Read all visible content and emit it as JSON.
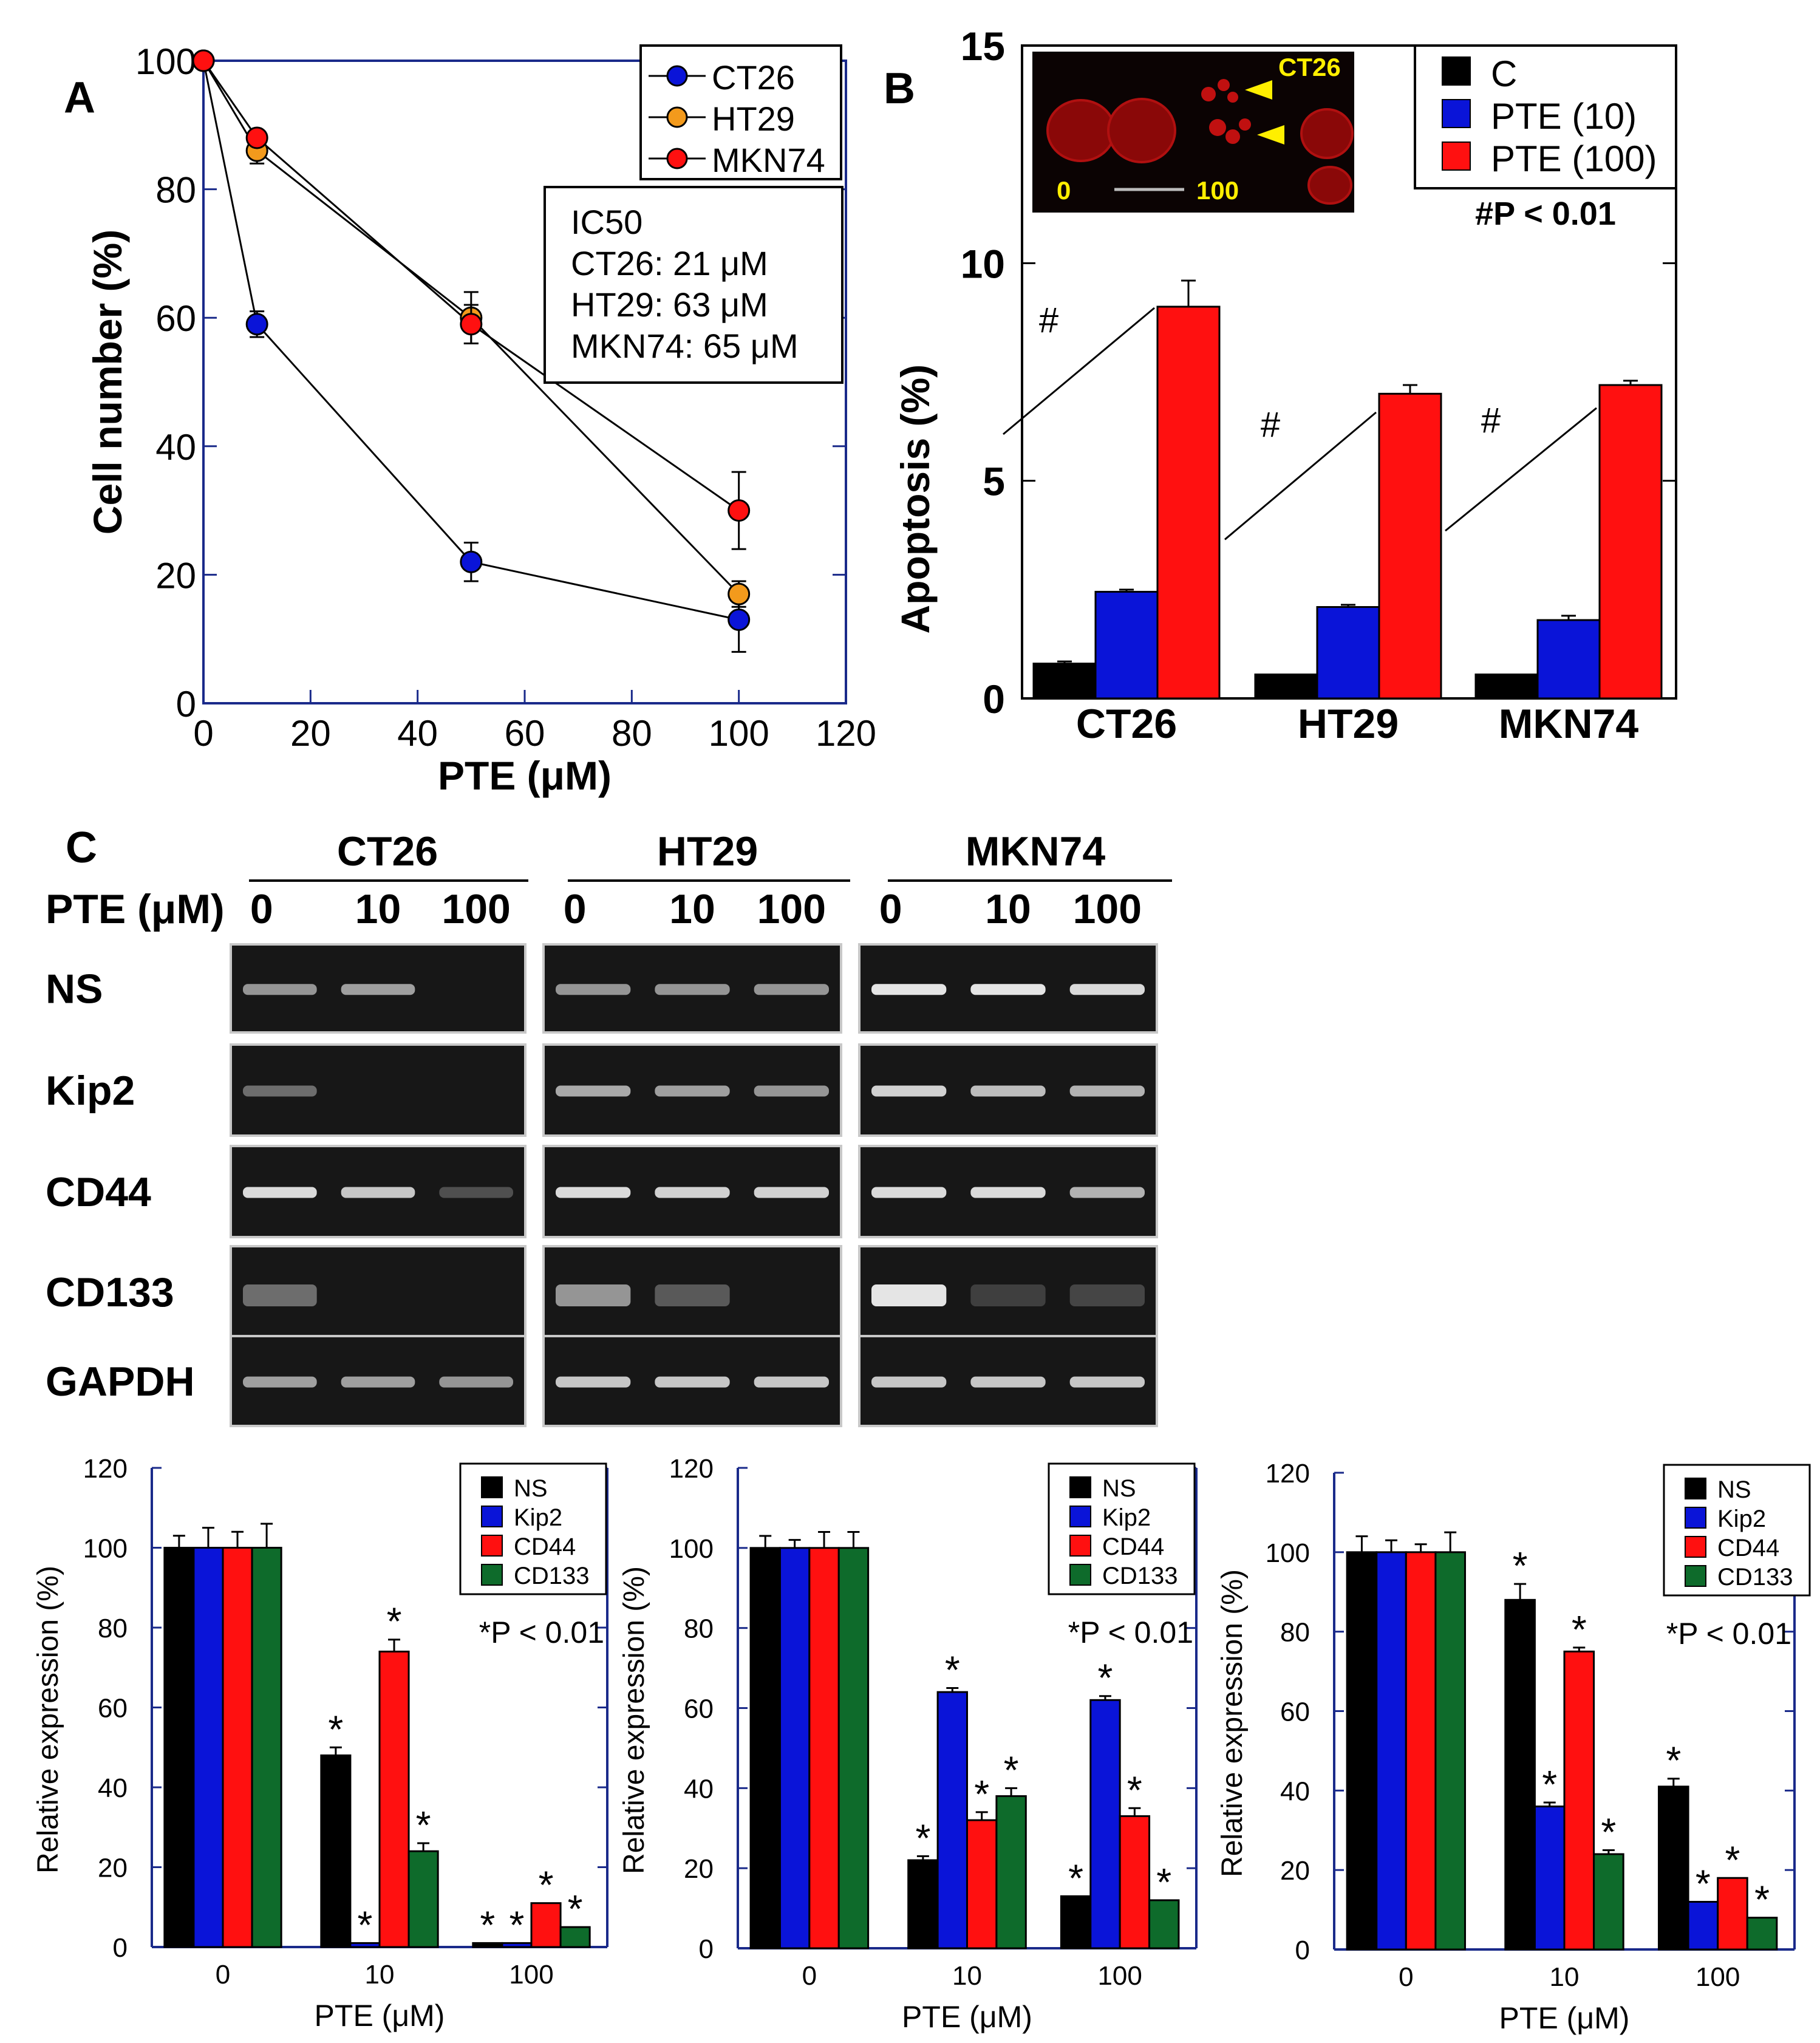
{
  "colors": {
    "black": "#000000",
    "blue": "#0a14d8",
    "orange": "#f39a1c",
    "red": "#ff1010",
    "green": "#0e6b2b",
    "yellow": "#ffef00"
  },
  "chart_data": [
    {
      "panel": "A",
      "type": "line",
      "xlabel": "PTE (μM)",
      "ylabel": "Cell number (%)",
      "xlim": [
        0,
        120
      ],
      "ylim": [
        0,
        100
      ],
      "xticks": [
        0,
        20,
        40,
        60,
        80,
        100,
        120
      ],
      "yticks": [
        0,
        20,
        40,
        60,
        80,
        100
      ],
      "x": [
        0,
        10,
        50,
        100
      ],
      "series": [
        {
          "name": "CT26",
          "color": "blue",
          "values": [
            100,
            59,
            22,
            13
          ],
          "errors": [
            0,
            2,
            3,
            5
          ]
        },
        {
          "name": "HT29",
          "color": "orange",
          "values": [
            100,
            86,
            60,
            17
          ],
          "errors": [
            0,
            2,
            4,
            2
          ]
        },
        {
          "name": "MKN74",
          "color": "red",
          "values": [
            100,
            88,
            59,
            30
          ],
          "errors": [
            0,
            1,
            3,
            6
          ]
        }
      ],
      "ic50_box": [
        "IC50",
        "CT26: 21 μM",
        "HT29: 63 μM",
        "MKN74: 65 μM"
      ]
    },
    {
      "panel": "B",
      "type": "bar",
      "ylabel": "Apoptosis (%)",
      "ylim": [
        0,
        15
      ],
      "yticks": [
        0,
        5,
        10,
        15
      ],
      "categories": [
        "CT26",
        "HT29",
        "MKN74"
      ],
      "series": [
        {
          "name": "C",
          "color": "black",
          "values": [
            0.8,
            0.55,
            0.55
          ],
          "errors": [
            0.05,
            0,
            0
          ]
        },
        {
          "name": "PTE (10)",
          "color": "blue",
          "values": [
            2.45,
            2.1,
            1.8
          ],
          "errors": [
            0.05,
            0.05,
            0.1
          ]
        },
        {
          "name": "PTE (100)",
          "color": "red",
          "values": [
            9.0,
            7.0,
            7.2
          ],
          "errors": [
            0.6,
            0.2,
            0.1
          ]
        }
      ],
      "significance_marks": [
        "#",
        "#",
        "#"
      ],
      "pvalue_note": "#P < 0.01",
      "inset": {
        "label": "CT26",
        "scale_start": "0",
        "scale_end": "100"
      }
    },
    {
      "panel": "C1",
      "type": "bar",
      "ylabel": "Relative expression (%)",
      "xlabel": "PTE (μM)",
      "ylim": [
        0,
        120
      ],
      "yticks": [
        0,
        20,
        40,
        60,
        80,
        100,
        120
      ],
      "categories": [
        "0",
        "10",
        "100"
      ],
      "series": [
        {
          "name": "NS",
          "color": "black",
          "values": [
            100,
            48,
            1
          ],
          "errors": [
            3,
            2,
            0
          ]
        },
        {
          "name": "Kip2",
          "color": "blue",
          "values": [
            100,
            1,
            1
          ],
          "errors": [
            5,
            0,
            0
          ]
        },
        {
          "name": "CD44",
          "color": "red",
          "values": [
            100,
            74,
            11
          ],
          "errors": [
            4,
            3,
            0
          ]
        },
        {
          "name": "CD133",
          "color": "green",
          "values": [
            100,
            24,
            5
          ],
          "errors": [
            6,
            2,
            0
          ]
        }
      ],
      "stars": [
        [
          false,
          false,
          false,
          false
        ],
        [
          true,
          true,
          true,
          true
        ],
        [
          true,
          true,
          true,
          true
        ]
      ],
      "pvalue_note": "*P < 0.01"
    },
    {
      "panel": "C2",
      "type": "bar",
      "ylabel": "Relative expression (%)",
      "xlabel": "PTE (μM)",
      "ylim": [
        0,
        120
      ],
      "yticks": [
        0,
        20,
        40,
        60,
        80,
        100,
        120
      ],
      "categories": [
        "0",
        "10",
        "100"
      ],
      "series": [
        {
          "name": "NS",
          "color": "black",
          "values": [
            100,
            22,
            13
          ],
          "errors": [
            3,
            1,
            0
          ]
        },
        {
          "name": "Kip2",
          "color": "blue",
          "values": [
            100,
            64,
            62
          ],
          "errors": [
            2,
            1,
            1
          ]
        },
        {
          "name": "CD44",
          "color": "red",
          "values": [
            100,
            32,
            33
          ],
          "errors": [
            4,
            2,
            2
          ]
        },
        {
          "name": "CD133",
          "color": "green",
          "values": [
            100,
            38,
            12
          ],
          "errors": [
            4,
            2,
            0
          ]
        }
      ],
      "stars": [
        [
          false,
          false,
          false,
          false
        ],
        [
          true,
          true,
          true,
          true
        ],
        [
          true,
          true,
          true,
          true
        ]
      ],
      "pvalue_note": "*P < 0.01"
    },
    {
      "panel": "C3",
      "type": "bar",
      "ylabel": "Relative expression (%)",
      "xlabel": "PTE (μM)",
      "ylim": [
        0,
        120
      ],
      "yticks": [
        0,
        20,
        40,
        60,
        80,
        100,
        120
      ],
      "categories": [
        "0",
        "10",
        "100"
      ],
      "series": [
        {
          "name": "NS",
          "color": "black",
          "values": [
            100,
            88,
            41
          ],
          "errors": [
            4,
            4,
            2
          ]
        },
        {
          "name": "Kip2",
          "color": "blue",
          "values": [
            100,
            36,
            12
          ],
          "errors": [
            3,
            1,
            0
          ]
        },
        {
          "name": "CD44",
          "color": "red",
          "values": [
            100,
            75,
            18
          ],
          "errors": [
            2,
            1,
            0
          ]
        },
        {
          "name": "CD133",
          "color": "green",
          "values": [
            100,
            24,
            8
          ],
          "errors": [
            5,
            1,
            0
          ]
        }
      ],
      "stars": [
        [
          false,
          false,
          false,
          false
        ],
        [
          true,
          true,
          true,
          true
        ],
        [
          true,
          true,
          true,
          true
        ]
      ],
      "pvalue_note": "*P < 0.01"
    }
  ],
  "panel_labels": {
    "A": "A",
    "B": "B",
    "C": "C"
  },
  "gel": {
    "pte_label": "PTE (μM)",
    "groups": [
      {
        "name": "CT26",
        "doses": [
          "0",
          "10",
          "100"
        ]
      },
      {
        "name": "HT29",
        "doses": [
          "0",
          "10",
          "100"
        ]
      },
      {
        "name": "MKN74",
        "doses": [
          "0",
          "10",
          "100"
        ]
      }
    ],
    "genes": [
      "NS",
      "Kip2",
      "CD44",
      "CD133",
      "GAPDH"
    ],
    "band_intensities": [
      [
        [
          0.55,
          0.6,
          0.0
        ],
        [
          0.55,
          0.55,
          0.55
        ],
        [
          0.95,
          0.95,
          0.9
        ]
      ],
      [
        [
          0.35,
          0.0,
          0.0
        ],
        [
          0.65,
          0.6,
          0.55
        ],
        [
          0.85,
          0.75,
          0.7
        ]
      ],
      [
        [
          0.9,
          0.8,
          0.2
        ],
        [
          0.9,
          0.85,
          0.85
        ],
        [
          0.9,
          0.9,
          0.7
        ]
      ],
      [
        [
          0.35,
          0.0,
          0.0
        ],
        [
          0.55,
          0.25,
          0.0
        ],
        [
          0.95,
          0.12,
          0.15
        ]
      ],
      [
        [
          0.6,
          0.6,
          0.55
        ],
        [
          0.8,
          0.8,
          0.8
        ],
        [
          0.8,
          0.8,
          0.8
        ]
      ]
    ]
  }
}
